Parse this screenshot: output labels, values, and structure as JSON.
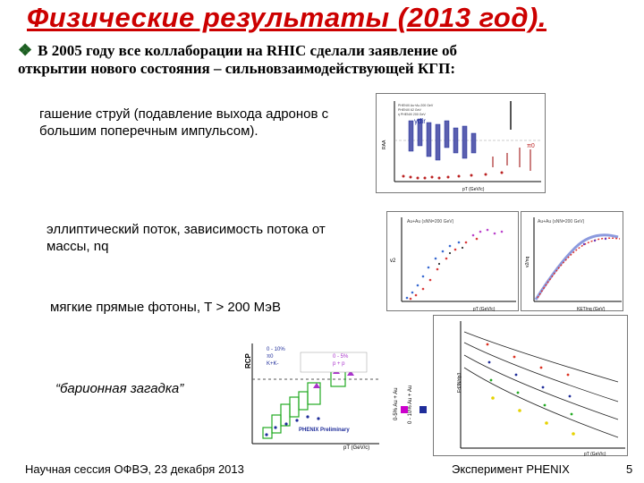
{
  "slide": {
    "title": "Физические результаты (2013 год).",
    "intro_line1": "В 2005 году все коллаборации на RHIC сделали заявление об",
    "intro_line2": "открытии нового состояния – сильновзаимодействующей КГП:",
    "items": [
      "гашение струй (подавление выхода адронов с большим поперечным импульсом).",
      "эллиптический поток, зависимость потока от массы, nq",
      "мягкие прямые фотоны, Т > 200 МэВ",
      "“барионная загадка”"
    ],
    "footer_left": "Научная сессия ОФВЭ, 23 декабря 2013",
    "footer_mid": "Эксперимент PHENIX",
    "page_number": "5"
  },
  "figures": {
    "raa_plot": {
      "y_label": "RAA",
      "x_label": "pT (GeV/c)",
      "label_gamma": "γdir",
      "label_pi0": "π0",
      "legend": [
        "PHENIX Au+Au 200 GeV",
        "PHENIX 62 GeV",
        "η PHENIX 200 GeV"
      ]
    },
    "v2_plot_left": {
      "title": "Au+Au  (sNN=200 GeV)",
      "y_label": "v2",
      "x_label": "pT (GeV/c)"
    },
    "v2_plot_right": {
      "title": "Au+Au  (sNN=200 GeV)",
      "y_label": "v2/nq",
      "x_label": "KET/nq (GeV)"
    },
    "baryon_plot": {
      "y_label": "RCP",
      "x_label": "pT (GeV/c)",
      "legend_left": [
        "0 - 10%",
        "π0",
        "K+K-"
      ],
      "legend_right": [
        "0 - 5%",
        "p + p"
      ],
      "badge": "PHENIX Preliminary",
      "side_label_1": "0-5% Au + Au",
      "side_label_2": "0 - 10% Au + Au"
    },
    "photon_plot": {
      "y_label": "Ed3N/dp3",
      "x_label": "pT (GeV/c)"
    }
  },
  "colors": {
    "title": "#cc0000",
    "bullet": "#1b5e20",
    "box_green": "#22aa22",
    "violet": "#aa33cc",
    "blue": "#1f2d9a"
  }
}
